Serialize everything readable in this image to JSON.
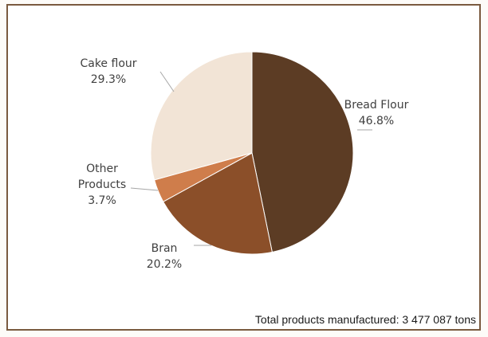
{
  "chart_data": {
    "type": "pie",
    "slices": [
      {
        "label": [
          "Bread Flour"
        ],
        "value": 46.8,
        "pct_label": "46.8%",
        "color": "#5c3c24"
      },
      {
        "label": [
          "Bran"
        ],
        "value": 20.2,
        "pct_label": "20.2%",
        "color": "#8b4f29"
      },
      {
        "label": [
          "Other",
          "Products"
        ],
        "value": 3.7,
        "pct_label": "3.7%",
        "color": "#cf7d4b"
      },
      {
        "label": [
          "Cake flour"
        ],
        "value": 29.3,
        "pct_label": "29.3%",
        "color": "#f2e4d6"
      }
    ],
    "start_angle_deg": 0,
    "direction": "clockwise",
    "total_label": "Total products manufactured: 3 477 087 tons"
  },
  "colors": {
    "frame_border": "#7a5a3f",
    "leader_line": "#a6a6a6",
    "text": "#404040"
  }
}
